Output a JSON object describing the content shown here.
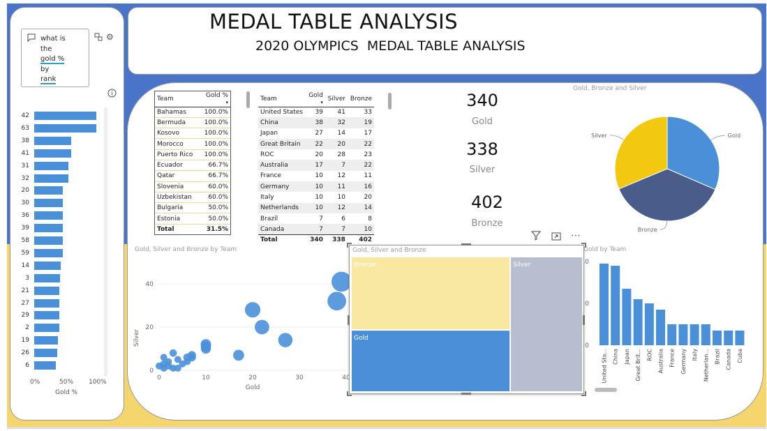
{
  "title": "MEDAL TABLE ANALYSIS",
  "subtitle": "2020 OLYMPICS  MEDAL TABLE ANALYSIS",
  "qa": {
    "question_lines": [
      "what is",
      "the",
      "gold %",
      "by",
      "rank"
    ],
    "bars": {
      "ranks": [
        "42",
        "63",
        "38",
        "41",
        "31",
        "32",
        "20",
        "30",
        "36",
        "39",
        "58",
        "59",
        "14",
        "3",
        "21",
        "27",
        "29",
        "2",
        "19",
        "26",
        "6"
      ],
      "gold_pct": [
        100,
        100,
        60,
        60,
        55,
        55,
        46,
        46,
        46,
        46,
        46,
        46,
        43,
        42,
        41,
        40,
        40,
        40,
        38,
        37,
        35
      ],
      "ticks": [
        "0%",
        "50%",
        "100%"
      ],
      "xlabel": "Gold %"
    }
  },
  "gold_pct_table": {
    "headers": [
      "Team",
      "Gold %"
    ],
    "rows": [
      [
        "Bahamas",
        "100.0%"
      ],
      [
        "Bermuda",
        "100.0%"
      ],
      [
        "Kosovo",
        "100.0%"
      ],
      [
        "Morocco",
        "100.0%"
      ],
      [
        "Puerto Rico",
        "100.0%"
      ],
      [
        "Ecuador",
        "66.7%"
      ],
      [
        "Qatar",
        "66.7%"
      ],
      [
        "Slovenia",
        "60.0%"
      ],
      [
        "Uzbekistan",
        "60.0%"
      ],
      [
        "Bulgaria",
        "50.0%"
      ],
      [
        "Estonia",
        "50.0%"
      ]
    ],
    "total": [
      "Total",
      "31.5%"
    ]
  },
  "medal_table": {
    "headers": [
      "Team",
      "Gold",
      "Silver",
      "Bronze"
    ],
    "rows": [
      [
        "United States",
        "39",
        "41",
        "33"
      ],
      [
        "China",
        "38",
        "32",
        "19"
      ],
      [
        "Japan",
        "27",
        "14",
        "17"
      ],
      [
        "Great Britain",
        "22",
        "20",
        "22"
      ],
      [
        "ROC",
        "20",
        "28",
        "23"
      ],
      [
        "Australia",
        "17",
        "7",
        "22"
      ],
      [
        "France",
        "10",
        "12",
        "11"
      ],
      [
        "Germany",
        "10",
        "11",
        "16"
      ],
      [
        "Italy",
        "10",
        "10",
        "20"
      ],
      [
        "Netherlands",
        "10",
        "12",
        "14"
      ],
      [
        "Brazil",
        "7",
        "6",
        "8"
      ],
      [
        "Canada",
        "7",
        "7",
        "10"
      ]
    ],
    "total": [
      "Total",
      "340",
      "338",
      "402"
    ]
  },
  "kpis": [
    {
      "value": "340",
      "label": "Gold"
    },
    {
      "value": "338",
      "label": "Silver"
    },
    {
      "value": "402",
      "label": "Bronze"
    }
  ],
  "colors": {
    "gold": "#4a90d9",
    "silver": "#f2c811",
    "bronze": "#4a5d8a",
    "bar": "#4a90d9",
    "treemap_bronze": "#f9e8a2",
    "treemap_gold": "#4a90d9",
    "treemap_silver": "#b8bdd0"
  },
  "chart_data": [
    {
      "type": "pie",
      "title": "Gold, Bronze and Silver",
      "labels": [
        "Gold",
        "Bronze",
        "Silver"
      ],
      "values": [
        340,
        402,
        338
      ]
    },
    {
      "type": "scatter",
      "title": "Gold, Silver and Bronze by Team",
      "xlabel": "Gold",
      "ylabel": "Silver",
      "x_ticks": [
        "0",
        "10",
        "20",
        "30",
        "40"
      ],
      "y_ticks": [
        "0",
        "20",
        "40"
      ],
      "xlim": [
        0,
        40
      ],
      "ylim": [
        0,
        50
      ],
      "points": [
        {
          "x": 39,
          "y": 41
        },
        {
          "x": 38,
          "y": 32
        },
        {
          "x": 27,
          "y": 14
        },
        {
          "x": 22,
          "y": 20
        },
        {
          "x": 20,
          "y": 28
        },
        {
          "x": 17,
          "y": 7
        },
        {
          "x": 10,
          "y": 12
        },
        {
          "x": 10,
          "y": 11
        },
        {
          "x": 10,
          "y": 10
        },
        {
          "x": 7,
          "y": 6
        },
        {
          "x": 7,
          "y": 7
        },
        {
          "x": 6,
          "y": 4
        },
        {
          "x": 5,
          "y": 3
        },
        {
          "x": 4,
          "y": 5
        },
        {
          "x": 3,
          "y": 8
        },
        {
          "x": 2,
          "y": 4
        },
        {
          "x": 1,
          "y": 6
        },
        {
          "x": 1,
          "y": 3
        },
        {
          "x": 2,
          "y": 2
        },
        {
          "x": 3,
          "y": 1
        },
        {
          "x": 1,
          "y": 1
        },
        {
          "x": 4,
          "y": 1
        },
        {
          "x": 6,
          "y": 6
        },
        {
          "x": 0,
          "y": 2
        }
      ]
    },
    {
      "type": "treemap",
      "title": "Gold, Silver and Bronze",
      "labels": [
        "Bronze",
        "Gold",
        "Silver"
      ],
      "values": [
        402,
        340,
        338
      ]
    },
    {
      "type": "bar",
      "title": "Gold by Team",
      "categories": [
        "United Sta...",
        "China",
        "Japan",
        "Great Brit...",
        "ROC",
        "Australia",
        "France",
        "Germany",
        "Italy",
        "Netherlan...",
        "Brazil",
        "Canada",
        "Cuba"
      ],
      "values": [
        39,
        38,
        27,
        22,
        20,
        17,
        10,
        10,
        10,
        10,
        7,
        7,
        7
      ],
      "y_ticks": [
        "0",
        "20",
        "40"
      ],
      "ylim": [
        0,
        40
      ]
    }
  ]
}
